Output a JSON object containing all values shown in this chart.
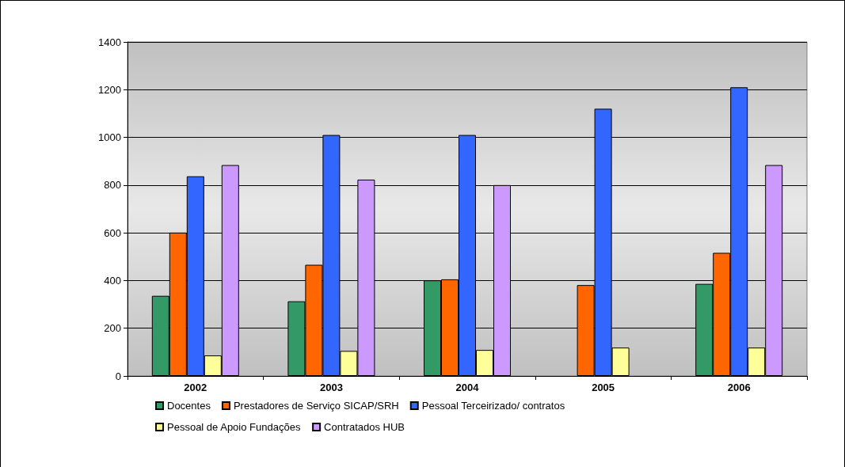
{
  "chart_data": {
    "type": "bar",
    "categories": [
      "2002",
      "2003",
      "2004",
      "2005",
      "2006"
    ],
    "series": [
      {
        "name": "Docentes",
        "color": "#339966",
        "values": [
          336,
          313,
          401,
          null,
          386
        ]
      },
      {
        "name": "Prestadores de Serviço SICAP/SRH",
        "color": "#ff6600",
        "values": [
          601,
          466,
          405,
          381,
          516
        ]
      },
      {
        "name": "Pessoal Terceirizado/ contratos",
        "color": "#3366ff",
        "values": [
          837,
          1010,
          1010,
          1120,
          1210
        ]
      },
      {
        "name": "Pessoal de Apoio Fundações",
        "color": "#ffff99",
        "values": [
          86,
          105,
          109,
          119,
          119
        ]
      },
      {
        "name": "Contratados HUB",
        "color": "#cc99ff",
        "values": [
          884,
          823,
          800,
          null,
          884
        ]
      }
    ],
    "ylim": [
      0,
      1400
    ],
    "yticks": [
      0,
      200,
      400,
      600,
      800,
      1000,
      1200,
      1400
    ],
    "grid": "y",
    "legend": "bottom"
  }
}
